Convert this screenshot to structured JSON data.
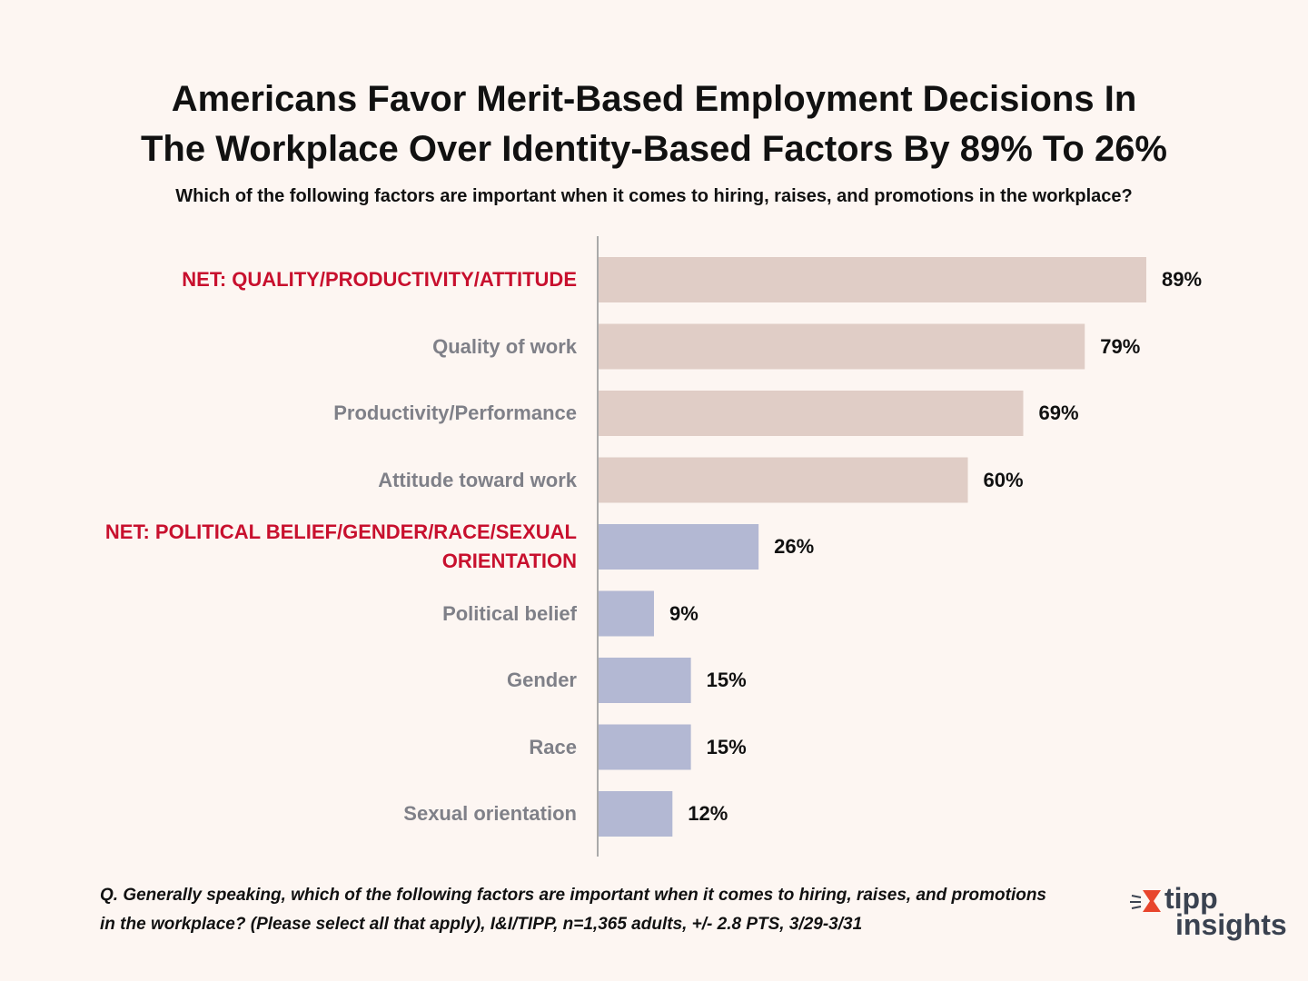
{
  "chart_data": {
    "type": "bar",
    "orientation": "horizontal",
    "title": "Americans Favor Merit-Based Employment Decisions In\nThe Workplace Over Identity-Based Factors By 89% To 26%",
    "subtitle": "Which of the following factors are important when it comes to hiring, raises, and promotions in the workplace?",
    "categories": [
      "NET: QUALITY/PRODUCTIVITY/ATTITUDE",
      "Quality of work",
      "Productivity/Performance",
      "Attitude toward work",
      "NET: POLITICAL BELIEF/GENDER/RACE/SEXUAL\nORIENTATION",
      "Political belief",
      "Gender",
      "Race",
      "Sexual orientation"
    ],
    "values": [
      89,
      79,
      69,
      60,
      26,
      9,
      15,
      15,
      12
    ],
    "value_labels": [
      "89%",
      "79%",
      "69%",
      "60%",
      "26%",
      "9%",
      "15%",
      "15%",
      "12%"
    ],
    "colors": [
      "#e0cdc6",
      "#e0cdc6",
      "#e0cdc6",
      "#e0cdc6",
      "#b3b8d3",
      "#b3b8d3",
      "#b3b8d3",
      "#b3b8d3",
      "#b3b8d3"
    ],
    "label_colors": [
      "#c8102e",
      "#7f8088",
      "#7f8088",
      "#7f8088",
      "#c8102e",
      "#7f8088",
      "#7f8088",
      "#7f8088",
      "#7f8088"
    ],
    "footnote": "Q. Generally speaking, which of the following factors are important when it comes to hiring, raises, and promotions\nin the workplace? (Please select all that apply), I&I/TIPP,  n=1,365 adults, +/- 2.8 PTS, 3/29-3/31",
    "logo": [
      "tipp",
      "insights"
    ]
  }
}
